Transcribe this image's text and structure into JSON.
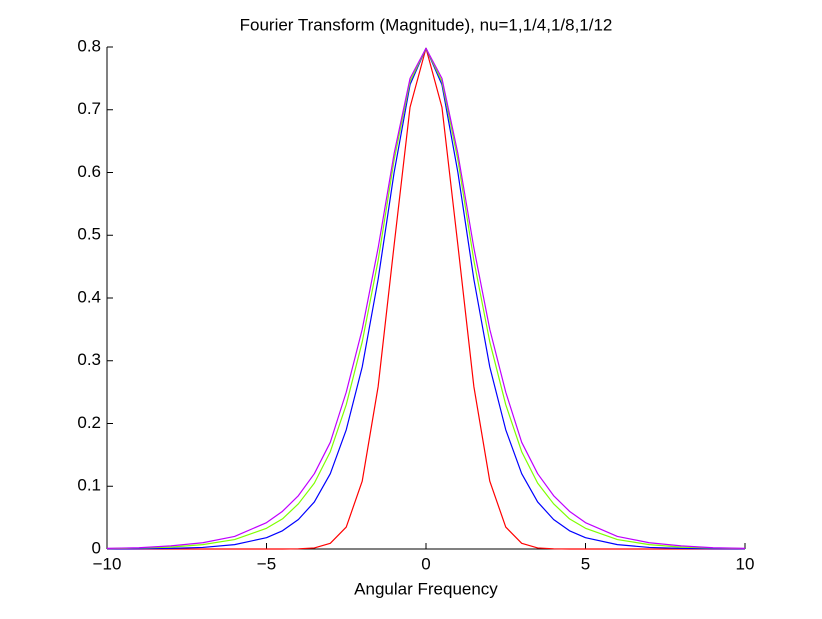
{
  "chart_data": {
    "type": "line",
    "title": "Fourier Transform (Magnitude), nu=1,1/4,1/8,1/12",
    "x_label": "Angular Frequency",
    "x": [
      -10,
      -9,
      -8,
      -7,
      -6,
      -5,
      -4.5,
      -4,
      -3.5,
      -3,
      -2.5,
      -2,
      -1.5,
      -1,
      -0.5,
      0,
      0.5,
      1,
      1.5,
      2,
      2.5,
      3,
      3.5,
      4,
      4.5,
      5,
      6,
      7,
      8,
      9,
      10
    ],
    "series": [
      {
        "color": "#ff0000",
        "values": [
          0,
          0,
          0,
          0,
          0,
          0,
          0,
          0.0003,
          0.0017,
          0.009,
          0.035,
          0.108,
          0.259,
          0.484,
          0.704,
          0.798,
          0.704,
          0.484,
          0.259,
          0.108,
          0.035,
          0.009,
          0.0017,
          0.0003,
          0,
          0,
          0,
          0,
          0,
          0,
          0
        ]
      },
      {
        "color": "#0000ff",
        "values": [
          0.0001,
          0.0003,
          0.001,
          0.0025,
          0.007,
          0.018,
          0.029,
          0.047,
          0.075,
          0.12,
          0.19,
          0.29,
          0.43,
          0.6,
          0.74,
          0.798,
          0.74,
          0.6,
          0.43,
          0.29,
          0.19,
          0.12,
          0.075,
          0.047,
          0.029,
          0.018,
          0.007,
          0.0025,
          0.001,
          0.0003,
          0.0001
        ]
      },
      {
        "color": "#7fff00",
        "values": [
          0.0007,
          0.0015,
          0.003,
          0.007,
          0.015,
          0.033,
          0.048,
          0.072,
          0.105,
          0.155,
          0.23,
          0.33,
          0.46,
          0.62,
          0.745,
          0.798,
          0.745,
          0.62,
          0.46,
          0.33,
          0.23,
          0.155,
          0.105,
          0.072,
          0.048,
          0.033,
          0.015,
          0.007,
          0.003,
          0.0015,
          0.0007
        ]
      },
      {
        "color": "#bf00ff",
        "values": [
          0.001,
          0.002,
          0.005,
          0.01,
          0.02,
          0.042,
          0.06,
          0.085,
          0.12,
          0.17,
          0.25,
          0.35,
          0.48,
          0.63,
          0.75,
          0.798,
          0.75,
          0.63,
          0.48,
          0.35,
          0.25,
          0.17,
          0.12,
          0.085,
          0.06,
          0.042,
          0.02,
          0.01,
          0.005,
          0.002,
          0.001
        ]
      }
    ],
    "xlim": [
      -10,
      10
    ],
    "xticks": [
      {
        "value": -10,
        "label": "−10"
      },
      {
        "value": -5,
        "label": "−5"
      },
      0,
      5,
      10
    ],
    "ylim": [
      0,
      0.8
    ],
    "yticks": [
      0,
      0.1,
      0.2,
      0.3,
      0.4,
      0.5,
      0.6,
      0.7,
      0.8
    ],
    "grid": false
  }
}
